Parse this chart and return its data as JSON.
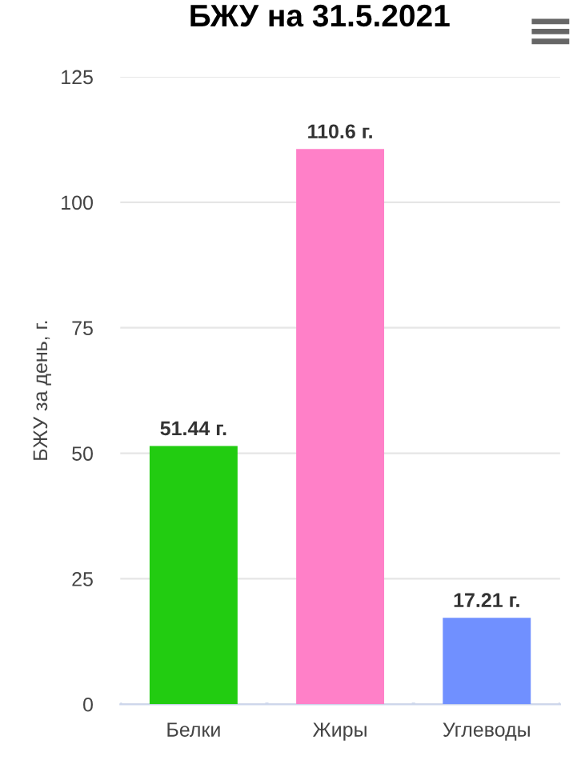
{
  "chart_data": {
    "type": "bar",
    "title": "БЖУ на 31.5.2021",
    "ylabel": "БЖУ за день, г.",
    "categories": [
      "Белки",
      "Жиры",
      "Углеводы"
    ],
    "values": [
      51.44,
      110.6,
      17.21
    ],
    "colors": [
      "#22cc11",
      "#ff80c8",
      "#7090ff"
    ],
    "value_labels": [
      "51.44 г.",
      "110.6 г.",
      "17.21 г."
    ],
    "ylim": [
      0,
      125
    ],
    "yticks": [
      0,
      25,
      50,
      75,
      100,
      125
    ],
    "grid": "y",
    "legend": false
  }
}
